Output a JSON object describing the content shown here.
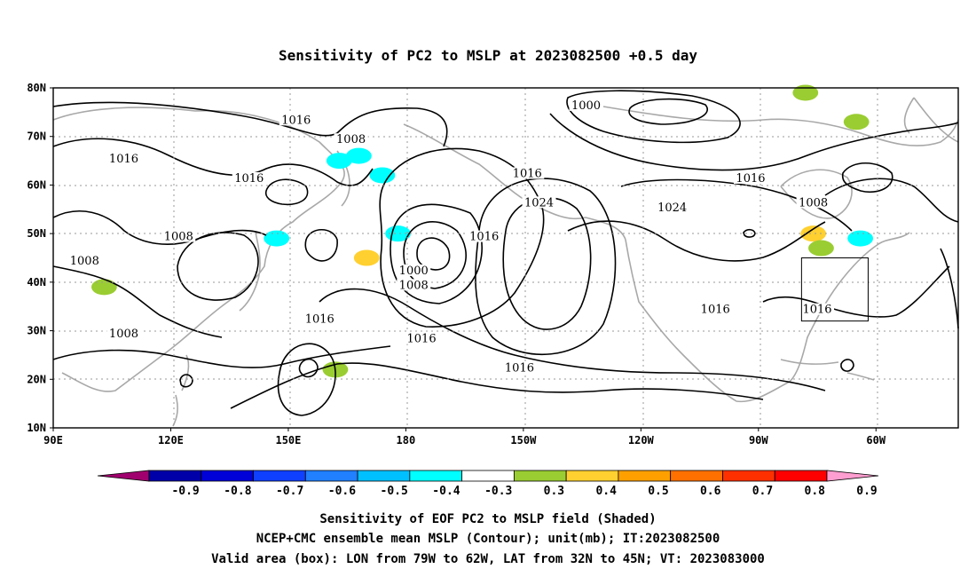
{
  "title": "Sensitivity of PC2 to MSLP at 2023082500 +0.5 day",
  "lon_labels": [
    "90E",
    "120E",
    "150E",
    "180",
    "150W",
    "120W",
    "90W",
    "60W"
  ],
  "lat_labels": [
    "80N",
    "70N",
    "60N",
    "50N",
    "40N",
    "30N",
    "20N",
    "10N"
  ],
  "contour_labels": [
    {
      "text": "1016",
      "lon": 152,
      "lat": 73
    },
    {
      "text": "1016",
      "lon": 108,
      "lat": 65
    },
    {
      "text": "1016",
      "lon": 140,
      "lat": 61
    },
    {
      "text": "1008",
      "lon": 166,
      "lat": 69
    },
    {
      "text": "1000",
      "lon": 226,
      "lat": 76
    },
    {
      "text": "1016",
      "lon": 211,
      "lat": 62
    },
    {
      "text": "1024",
      "lon": 214,
      "lat": 56
    },
    {
      "text": "1024",
      "lon": 248,
      "lat": 55
    },
    {
      "text": "1016",
      "lon": 268,
      "lat": 61
    },
    {
      "text": "1008",
      "lon": 284,
      "lat": 56
    },
    {
      "text": "1016",
      "lon": 200,
      "lat": 49
    },
    {
      "text": "1008",
      "lon": 122,
      "lat": 49
    },
    {
      "text": "1008",
      "lon": 98,
      "lat": 44
    },
    {
      "text": "1000",
      "lon": 182,
      "lat": 42
    },
    {
      "text": "1008",
      "lon": 182,
      "lat": 39
    },
    {
      "text": "1016",
      "lon": 158,
      "lat": 32
    },
    {
      "text": "1016",
      "lon": 184,
      "lat": 28
    },
    {
      "text": "1008",
      "lon": 108,
      "lat": 29
    },
    {
      "text": "1016",
      "lon": 209,
      "lat": 22
    },
    {
      "text": "1016",
      "lon": 259,
      "lat": 34
    },
    {
      "text": "1016",
      "lon": 285,
      "lat": 34
    }
  ],
  "colorbar": {
    "ticks": [
      "-0.9",
      "-0.8",
      "-0.7",
      "-0.6",
      "-0.5",
      "-0.4",
      "-0.3",
      "0.3",
      "0.4",
      "0.5",
      "0.6",
      "0.7",
      "0.8",
      "0.9"
    ],
    "colors": [
      "#a0006e",
      "#0000a8",
      "#0000d8",
      "#1040ff",
      "#2080ff",
      "#00c0ff",
      "#00ffff",
      "#ffffff",
      "#9acd32",
      "#ffd030",
      "#ffa000",
      "#ff7000",
      "#ff3000",
      "#ff0000",
      "#ff9ed0"
    ]
  },
  "shading": [
    {
      "lon": 168,
      "lat": 66,
      "level": -0.4
    },
    {
      "lon": 174,
      "lat": 62,
      "level": -0.4
    },
    {
      "lon": 163,
      "lat": 65,
      "level": -0.4
    },
    {
      "lon": 147,
      "lat": 49,
      "level": -0.4
    },
    {
      "lon": 178,
      "lat": 50,
      "level": -0.4
    },
    {
      "lon": 296,
      "lat": 49,
      "level": -0.4
    },
    {
      "lon": 170,
      "lat": 45,
      "level": 0.5
    },
    {
      "lon": 162,
      "lat": 22,
      "level": 0.4
    },
    {
      "lon": 284,
      "lat": 50,
      "level": 0.5
    },
    {
      "lon": 286,
      "lat": 47,
      "level": 0.4
    },
    {
      "lon": 295,
      "lat": 73,
      "level": 0.4
    },
    {
      "lon": 282,
      "lat": 79,
      "level": 0.4
    },
    {
      "lon": 103,
      "lat": 39,
      "level": 0.4
    }
  ],
  "valid_box": {
    "lon_min": 281,
    "lon_max": 298,
    "lat_min": 32,
    "lat_max": 45
  },
  "captions": [
    "Sensitivity of EOF PC2 to MSLP field (Shaded)",
    "NCEP+CMC ensemble mean MSLP (Contour); unit(mb); IT:2023082500",
    "Valid area (box): LON from 79W to 62W, LAT from 32N to 45N; VT: 2023083000"
  ]
}
